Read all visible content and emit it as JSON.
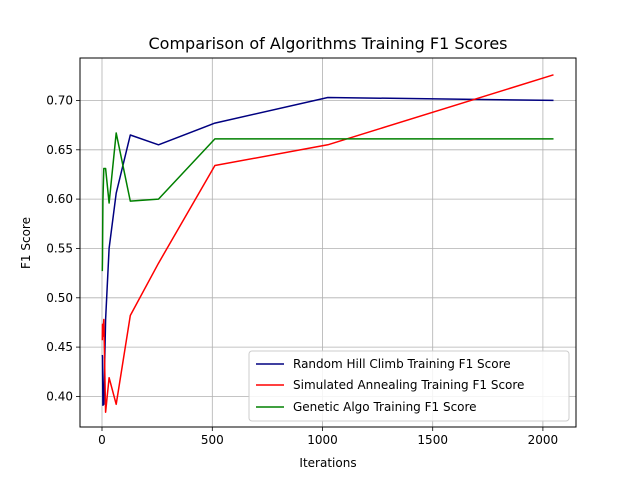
{
  "chart_data": {
    "type": "line",
    "title": "Comparison of Algorithms Training F1 Scores",
    "xlabel": "Iterations",
    "ylabel": "F1 Score",
    "xlim": [
      -100,
      2150
    ],
    "ylim": [
      0.369,
      0.743
    ],
    "xticks": [
      0,
      500,
      1000,
      1500,
      2000
    ],
    "yticks": [
      0.4,
      0.45,
      0.5,
      0.55,
      0.6,
      0.65,
      0.7
    ],
    "ytick_labels": [
      "0.40",
      "0.45",
      "0.50",
      "0.55",
      "0.60",
      "0.65",
      "0.70"
    ],
    "grid": true,
    "legend_position": "lower-right",
    "series": [
      {
        "name": "Random Hill Climb Training F1 Score",
        "color": "#000080",
        "x": [
          1,
          2,
          4,
          8,
          16,
          32,
          64,
          128,
          256,
          512,
          1024,
          2048
        ],
        "y": [
          0.442,
          0.44,
          0.391,
          0.392,
          0.478,
          0.55,
          0.606,
          0.665,
          0.655,
          0.677,
          0.703,
          0.7
        ]
      },
      {
        "name": "Simulated Annealing Training F1 Score",
        "color": "#ff0000",
        "x": [
          1,
          2,
          4,
          8,
          16,
          32,
          64,
          128,
          256,
          512,
          1024,
          2048
        ],
        "y": [
          0.457,
          0.473,
          0.461,
          0.478,
          0.384,
          0.419,
          0.392,
          0.482,
          0.535,
          0.634,
          0.655,
          0.726
        ]
      },
      {
        "name": "Genetic Algo Training F1 Score",
        "color": "#008000",
        "x": [
          1,
          2,
          4,
          8,
          16,
          32,
          64,
          128,
          256,
          512,
          1024,
          2048
        ],
        "y": [
          0.527,
          0.54,
          0.598,
          0.631,
          0.631,
          0.596,
          0.667,
          0.598,
          0.6,
          0.661,
          0.661,
          0.661
        ]
      }
    ]
  }
}
